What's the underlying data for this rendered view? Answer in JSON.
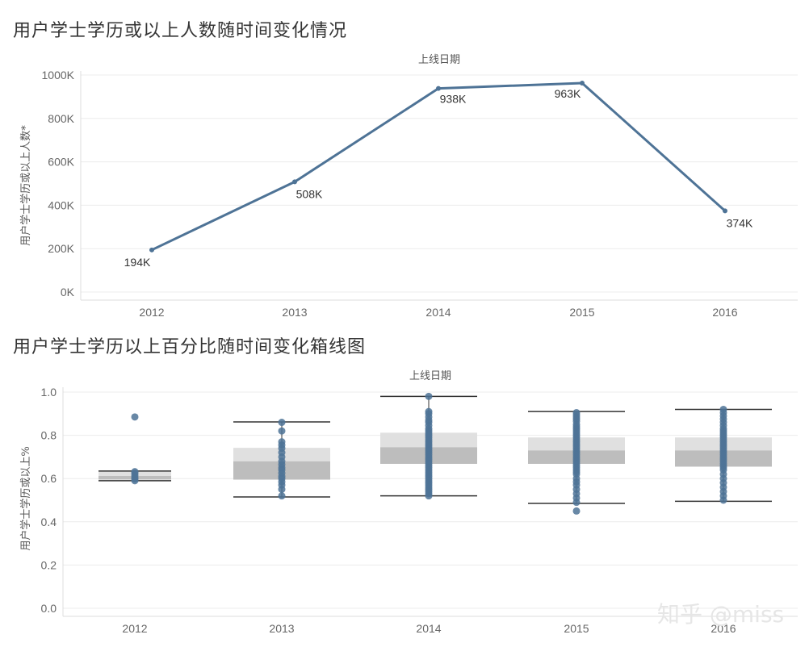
{
  "titles": {
    "chart1": "用户学士学历或以上人数随时间变化情况",
    "chart2": "用户学士学历以上百分比随时间变化箱线图"
  },
  "watermark": "知乎 @miss",
  "colors": {
    "series": "#4e7396",
    "box_light": "#e0e0e0",
    "box_dark": "#bdbdbd",
    "whisker": "#333333"
  },
  "chart_data": [
    {
      "type": "line",
      "title": "用户学士学历或以上人数随时间变化情况",
      "xlabel": "上线日期",
      "ylabel": "用户学士学历或以上人数*",
      "categories": [
        "2012",
        "2013",
        "2014",
        "2015",
        "2016"
      ],
      "values": [
        194000,
        508000,
        938000,
        963000,
        374000
      ],
      "data_labels": [
        "194K",
        "508K",
        "938K",
        "963K",
        "374K"
      ],
      "ylim": [
        0,
        1000000
      ],
      "yticks": [
        "0K",
        "200K",
        "400K",
        "600K",
        "800K",
        "1000K"
      ],
      "grid": true
    },
    {
      "type": "box",
      "title": "用户学士学历以上百分比随时间变化箱线图",
      "xlabel": "上线日期",
      "ylabel": "用户学士学历或以上%",
      "categories": [
        "2012",
        "2013",
        "2014",
        "2015",
        "2016"
      ],
      "ylim": [
        0,
        1.0
      ],
      "yticks": [
        "0.0",
        "0.2",
        "0.4",
        "0.6",
        "0.8",
        "1.0"
      ],
      "grid": true,
      "boxes": [
        {
          "whisker_low": 0.59,
          "q1": 0.595,
          "median": 0.612,
          "q3": 0.635,
          "whisker_high": 0.635,
          "points": [
            0.885,
            0.632,
            0.625,
            0.615,
            0.605,
            0.598,
            0.59
          ]
        },
        {
          "whisker_low": 0.515,
          "q1": 0.595,
          "median": 0.68,
          "q3": 0.742,
          "whisker_high": 0.862,
          "points": [
            0.86,
            0.82,
            0.77,
            0.755,
            0.74,
            0.72,
            0.7,
            0.68,
            0.665,
            0.65,
            0.64,
            0.625,
            0.61,
            0.6,
            0.585,
            0.57,
            0.55,
            0.52
          ]
        },
        {
          "whisker_low": 0.52,
          "q1": 0.668,
          "median": 0.745,
          "q3": 0.812,
          "whisker_high": 0.98,
          "points": [
            0.98,
            0.91,
            0.9,
            0.885,
            0.87,
            0.86,
            0.845,
            0.83,
            0.82,
            0.81,
            0.8,
            0.79,
            0.78,
            0.77,
            0.76,
            0.75,
            0.74,
            0.73,
            0.72,
            0.71,
            0.7,
            0.69,
            0.68,
            0.67,
            0.66,
            0.65,
            0.64,
            0.63,
            0.62,
            0.61,
            0.6,
            0.59,
            0.58,
            0.57,
            0.56,
            0.55,
            0.54,
            0.53,
            0.52
          ]
        },
        {
          "whisker_low": 0.485,
          "q1": 0.668,
          "median": 0.73,
          "q3": 0.79,
          "whisker_high": 0.91,
          "points": [
            0.905,
            0.895,
            0.885,
            0.875,
            0.865,
            0.85,
            0.84,
            0.83,
            0.82,
            0.81,
            0.8,
            0.79,
            0.78,
            0.77,
            0.76,
            0.75,
            0.74,
            0.73,
            0.72,
            0.71,
            0.7,
            0.69,
            0.68,
            0.67,
            0.66,
            0.65,
            0.64,
            0.63,
            0.62,
            0.6,
            0.585,
            0.57,
            0.55,
            0.53,
            0.51,
            0.49,
            0.45
          ]
        },
        {
          "whisker_low": 0.495,
          "q1": 0.655,
          "median": 0.73,
          "q3": 0.79,
          "whisker_high": 0.92,
          "points": [
            0.92,
            0.905,
            0.89,
            0.875,
            0.86,
            0.845,
            0.83,
            0.82,
            0.81,
            0.8,
            0.79,
            0.78,
            0.77,
            0.76,
            0.75,
            0.74,
            0.73,
            0.72,
            0.71,
            0.7,
            0.69,
            0.68,
            0.67,
            0.66,
            0.65,
            0.64,
            0.62,
            0.6,
            0.58,
            0.56,
            0.54,
            0.52,
            0.5
          ]
        }
      ]
    }
  ]
}
